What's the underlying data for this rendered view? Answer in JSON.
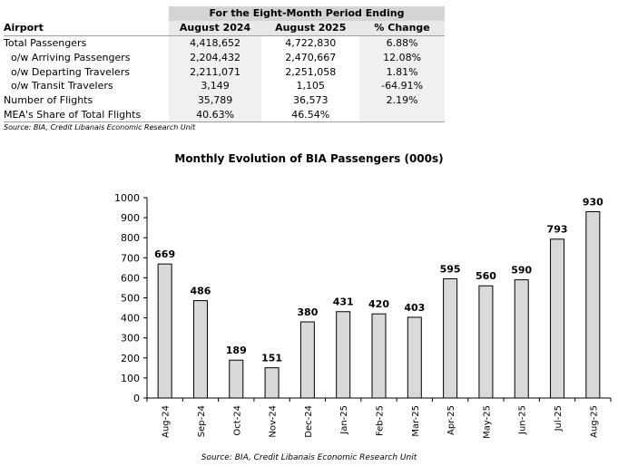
{
  "table": {
    "period_title": "For the Eight-Month Period Ending",
    "headers": [
      "Airport",
      "August 2024",
      "August 2025",
      "% Change"
    ],
    "rows": [
      {
        "label": "Total Passengers",
        "v2024": "4,418,652",
        "v2025": "4,722,830",
        "change": "6.88%"
      },
      {
        "label": "o/w Arriving Passengers",
        "v2024": "2,204,432",
        "v2025": "2,470,667",
        "change": "12.08%"
      },
      {
        "label": "o/w Departing Travelers",
        "v2024": "2,211,071",
        "v2025": "2,251,058",
        "change": "1.81%"
      },
      {
        "label": "o/w Transit Travelers",
        "v2024": "3,149",
        "v2025": "1,105",
        "change": "-64.91%"
      },
      {
        "label": "Number of Flights",
        "v2024": "35,789",
        "v2025": "36,573",
        "change": "2.19%"
      },
      {
        "label": "MEA's Share of Total Flights",
        "v2024": "40.63%",
        "v2025": "46.54%",
        "change": ""
      }
    ],
    "source": "Source: BIA, Credit Libanais Economic Research Unit"
  },
  "chart_data": {
    "type": "bar",
    "title": "Monthly Evolution of BIA Passengers (000s)",
    "categories": [
      "Aug-24",
      "Sep-24",
      "Oct-24",
      "Nov-24",
      "Dec-24",
      "Jan-25",
      "Feb-25",
      "Mar-25",
      "Apr-25",
      "May-25",
      "Jun-25",
      "Jul-25",
      "Aug-25"
    ],
    "values": [
      669,
      486,
      189,
      151,
      380,
      431,
      420,
      403,
      595,
      560,
      590,
      793,
      930
    ],
    "ylim": [
      0,
      1000
    ],
    "yticks": [
      0,
      100,
      200,
      300,
      400,
      500,
      600,
      700,
      800,
      900,
      1000
    ],
    "grid": false,
    "bar_color": "#d9d9d9",
    "source": "Source:  BIA, Credit Libanais Economic Research Unit"
  }
}
